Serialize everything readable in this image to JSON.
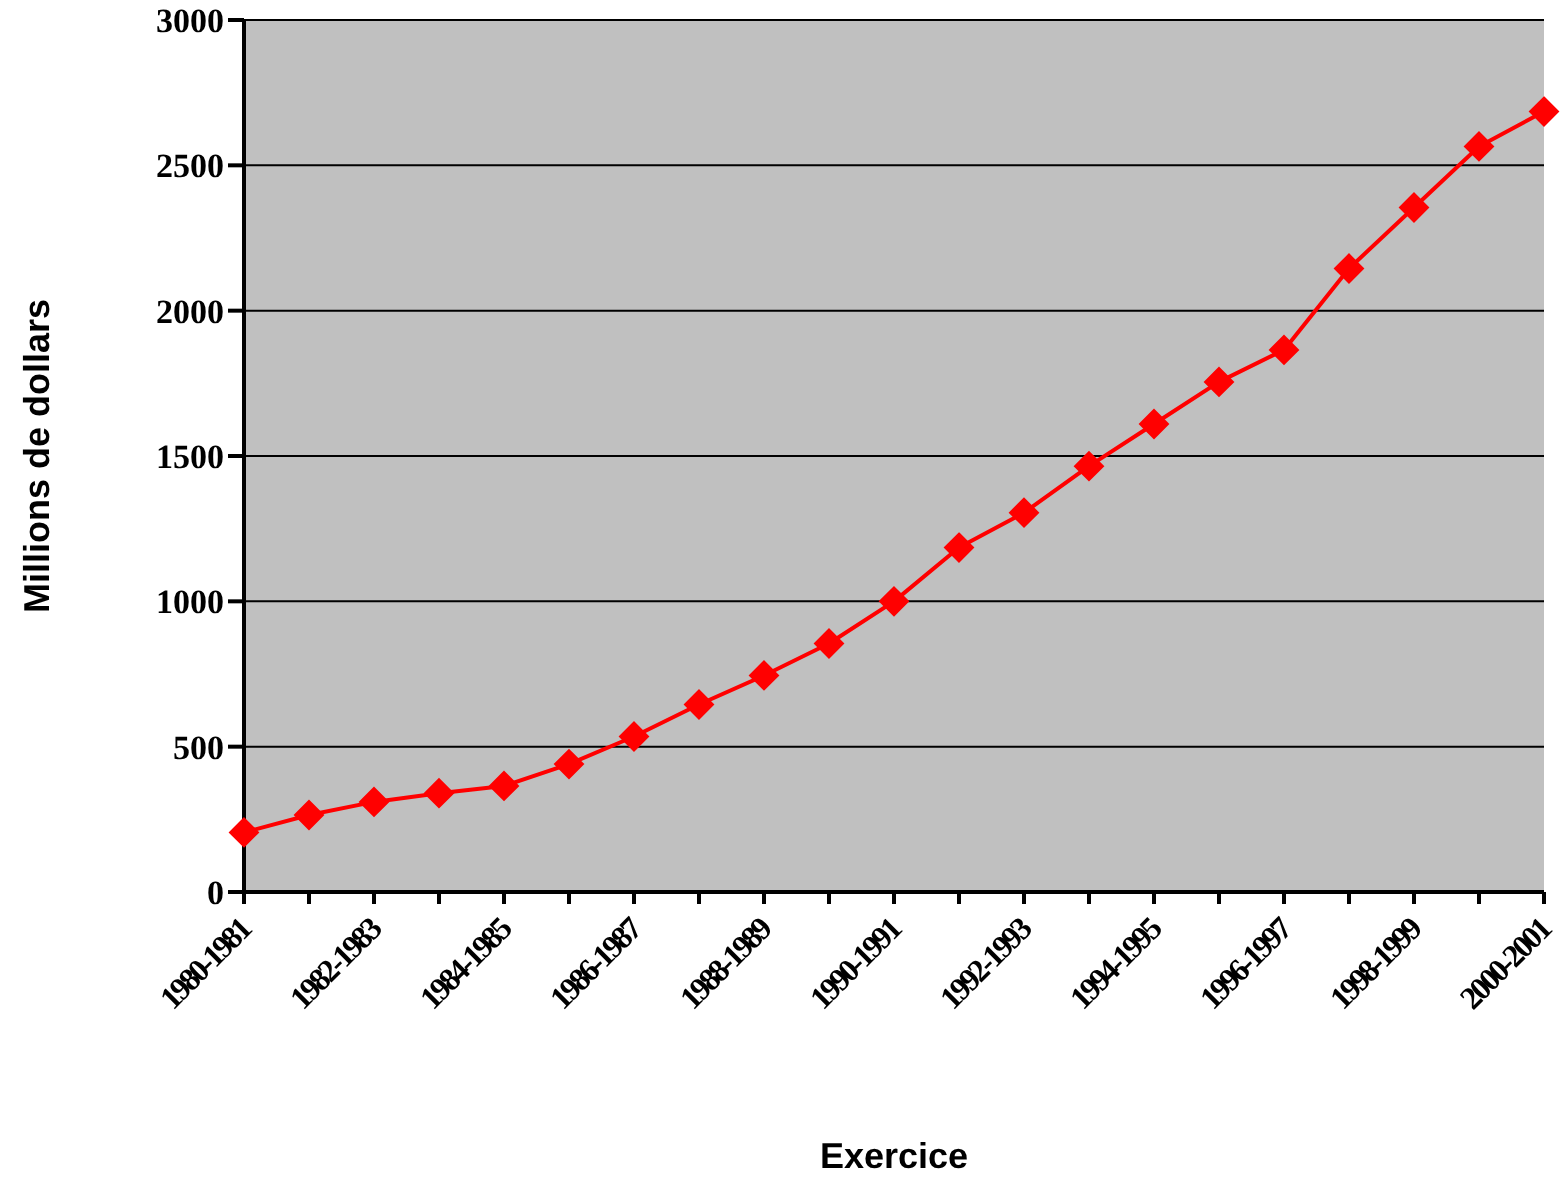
{
  "chart_data": {
    "type": "line",
    "xlabel": "Exercice",
    "ylabel": "Millions de dollars",
    "categories": [
      "1980-1981",
      null,
      "1982-1983",
      null,
      "1984-1985",
      null,
      "1986-1987",
      null,
      "1988-1989",
      null,
      "1990-1991",
      null,
      "1992-1993",
      null,
      "1994-1995",
      null,
      "1996-1997",
      null,
      "1998-1999",
      null,
      "2000-2001"
    ],
    "series": [
      {
        "color": "#ff0000",
        "values": [
          205,
          265,
          310,
          340,
          365,
          440,
          535,
          645,
          745,
          855,
          1000,
          1185,
          1305,
          1465,
          1610,
          1755,
          1865,
          2145,
          2355,
          2565,
          2685
        ]
      }
    ],
    "ylim": [
      0,
      3000
    ],
    "yticks": [
      0,
      500,
      1000,
      1500,
      2000,
      2500,
      3000
    ],
    "grid": "y",
    "marker": "diamond",
    "legend": false
  }
}
